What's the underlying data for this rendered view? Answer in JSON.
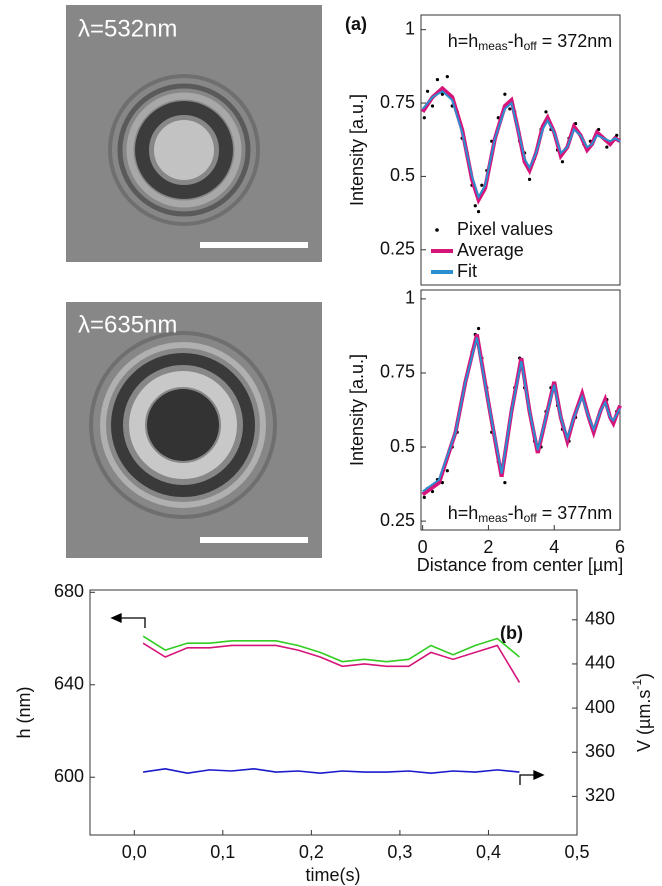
{
  "panels": [
    {
      "label": "λ=532nm"
    },
    {
      "label": "λ=635nm"
    }
  ],
  "chart_data": [
    {
      "type": "line",
      "panel_label": "(a)",
      "ylabel": "Intensity [a.u.]",
      "annotation": [
        "h=h",
        "meas",
        "-h",
        "off",
        " = 372nm"
      ],
      "xlim": [
        -0.05,
        6
      ],
      "ylim": [
        0.13,
        1.05
      ],
      "yticks": [
        0.25,
        0.5,
        0.75,
        1
      ],
      "legend": "lower-left",
      "series": [
        {
          "name": "Pixel values",
          "color": "#000000",
          "style": "scatter",
          "x": [
            0.05,
            0.15,
            0.3,
            0.45,
            0.6,
            0.75,
            0.9,
            1.05,
            1.2,
            1.35,
            1.5,
            1.6,
            1.7,
            1.8,
            1.95,
            2.1,
            2.3,
            2.5,
            2.65,
            2.8,
            2.95,
            3.1,
            3.25,
            3.4,
            3.6,
            3.75,
            3.9,
            4.1,
            4.25,
            4.45,
            4.65,
            4.9,
            5.1,
            5.35,
            5.6,
            5.9
          ],
          "values": [
            0.7,
            0.79,
            0.74,
            0.83,
            0.78,
            0.84,
            0.74,
            0.72,
            0.63,
            0.58,
            0.47,
            0.4,
            0.38,
            0.47,
            0.52,
            0.62,
            0.7,
            0.78,
            0.73,
            0.72,
            0.62,
            0.58,
            0.49,
            0.56,
            0.66,
            0.72,
            0.66,
            0.59,
            0.55,
            0.63,
            0.68,
            0.61,
            0.62,
            0.66,
            0.6,
            0.64
          ]
        },
        {
          "name": "Average",
          "color": "#d6157a",
          "style": "line",
          "x": [
            0,
            0.3,
            0.6,
            0.9,
            1.2,
            1.5,
            1.7,
            1.9,
            2.2,
            2.5,
            2.7,
            2.9,
            3.1,
            3.25,
            3.45,
            3.65,
            3.8,
            4.0,
            4.2,
            4.4,
            4.6,
            4.8,
            5.0,
            5.15,
            5.3,
            5.5,
            5.7,
            5.85,
            6
          ],
          "values": [
            0.72,
            0.77,
            0.8,
            0.77,
            0.66,
            0.49,
            0.42,
            0.46,
            0.63,
            0.74,
            0.76,
            0.66,
            0.55,
            0.52,
            0.58,
            0.67,
            0.7,
            0.65,
            0.57,
            0.6,
            0.67,
            0.64,
            0.59,
            0.61,
            0.65,
            0.63,
            0.61,
            0.63,
            0.62
          ]
        },
        {
          "name": "Fit",
          "color": "#2a8fd0",
          "style": "line",
          "x": [
            0,
            0.3,
            0.6,
            0.9,
            1.2,
            1.5,
            1.7,
            1.9,
            2.2,
            2.5,
            2.7,
            2.9,
            3.1,
            3.25,
            3.45,
            3.65,
            3.8,
            4.0,
            4.2,
            4.4,
            4.6,
            4.8,
            5.0,
            5.15,
            5.3,
            5.5,
            5.7,
            5.85,
            6
          ],
          "values": [
            0.73,
            0.77,
            0.79,
            0.76,
            0.65,
            0.5,
            0.43,
            0.47,
            0.63,
            0.73,
            0.75,
            0.66,
            0.56,
            0.53,
            0.58,
            0.66,
            0.69,
            0.65,
            0.58,
            0.6,
            0.66,
            0.64,
            0.6,
            0.61,
            0.64,
            0.63,
            0.62,
            0.63,
            0.62
          ]
        }
      ]
    },
    {
      "type": "line",
      "ylabel": "Intensity [a.u.]",
      "xlabel": "Distance from center [µm]",
      "annotation": [
        "h=h",
        "meas",
        "-h",
        "off",
        " = 377nm"
      ],
      "xlim": [
        -0.05,
        6
      ],
      "ylim": [
        0.22,
        1.03
      ],
      "xticks": [
        0,
        2,
        4,
        6
      ],
      "yticks": [
        0.25,
        0.5,
        0.75,
        1
      ],
      "series": [
        {
          "color": "#000000",
          "style": "scatter",
          "x": [
            0.05,
            0.15,
            0.3,
            0.45,
            0.6,
            0.75,
            0.9,
            1.05,
            1.2,
            1.35,
            1.5,
            1.6,
            1.7,
            1.8,
            1.95,
            2.1,
            2.3,
            2.5,
            2.65,
            2.8,
            2.95,
            3.1,
            3.25,
            3.4,
            3.6,
            3.75,
            3.9,
            4.1,
            4.25,
            4.45,
            4.65,
            4.9,
            5.1,
            5.35,
            5.6,
            5.9
          ],
          "values": [
            0.33,
            0.36,
            0.35,
            0.39,
            0.38,
            0.42,
            0.5,
            0.55,
            0.66,
            0.74,
            0.82,
            0.88,
            0.9,
            0.8,
            0.7,
            0.55,
            0.45,
            0.38,
            0.58,
            0.7,
            0.8,
            0.7,
            0.62,
            0.52,
            0.5,
            0.62,
            0.7,
            0.64,
            0.56,
            0.52,
            0.6,
            0.66,
            0.58,
            0.6,
            0.66,
            0.62
          ]
        },
        {
          "color": "#d6157a",
          "style": "line",
          "x": [
            0,
            0.5,
            1.0,
            1.3,
            1.65,
            2.0,
            2.4,
            2.7,
            3.0,
            3.25,
            3.5,
            3.75,
            4.0,
            4.2,
            4.4,
            4.6,
            4.85,
            5.05,
            5.2,
            5.4,
            5.55,
            5.7,
            5.8,
            6
          ],
          "values": [
            0.34,
            0.38,
            0.55,
            0.72,
            0.88,
            0.65,
            0.4,
            0.62,
            0.8,
            0.62,
            0.48,
            0.6,
            0.72,
            0.6,
            0.52,
            0.6,
            0.68,
            0.6,
            0.55,
            0.62,
            0.66,
            0.6,
            0.58,
            0.64
          ]
        },
        {
          "color": "#2a8fd0",
          "style": "line",
          "x": [
            0,
            0.5,
            1.0,
            1.3,
            1.65,
            2.0,
            2.4,
            2.7,
            3.0,
            3.25,
            3.5,
            3.75,
            4.0,
            4.2,
            4.4,
            4.6,
            4.85,
            5.05,
            5.2,
            5.4,
            5.55,
            5.7,
            5.8,
            6
          ],
          "values": [
            0.35,
            0.39,
            0.55,
            0.72,
            0.87,
            0.65,
            0.41,
            0.62,
            0.79,
            0.62,
            0.49,
            0.6,
            0.71,
            0.6,
            0.53,
            0.6,
            0.67,
            0.6,
            0.56,
            0.62,
            0.65,
            0.6,
            0.59,
            0.63
          ]
        }
      ]
    },
    {
      "type": "line",
      "panel_label": "(b)",
      "xlabel": "time(s)",
      "ylabel": "h (nm)",
      "y2label": [
        "V (µm.s",
        "-1",
        ")"
      ],
      "xlim": [
        -0.05,
        0.5
      ],
      "ylim": [
        575,
        681
      ],
      "y2lim": [
        285,
        507
      ],
      "xticks": [
        {
          "value": 0,
          "label": "0,0"
        },
        {
          "value": 0.1,
          "label": "0,1"
        },
        {
          "value": 0.2,
          "label": "0,2"
        },
        {
          "value": 0.3,
          "label": "0,3"
        },
        {
          "value": 0.4,
          "label": "0,4"
        },
        {
          "value": 0.5,
          "label": "0,5"
        }
      ],
      "yticks": [
        600,
        640,
        680
      ],
      "y2ticks": [
        320,
        360,
        400,
        440,
        480
      ],
      "series": [
        {
          "color": "#33cc22",
          "style": "line",
          "x": [
            0.01,
            0.035,
            0.06,
            0.085,
            0.11,
            0.135,
            0.16,
            0.185,
            0.21,
            0.235,
            0.26,
            0.285,
            0.31,
            0.335,
            0.36,
            0.385,
            0.41,
            0.435
          ],
          "values": [
            661,
            655,
            658,
            658,
            659,
            659,
            659,
            657,
            654,
            650,
            651,
            650,
            651,
            657,
            653,
            657,
            660,
            652
          ]
        },
        {
          "color": "#d6157a",
          "style": "line",
          "x": [
            0.01,
            0.035,
            0.06,
            0.085,
            0.11,
            0.135,
            0.16,
            0.185,
            0.21,
            0.235,
            0.26,
            0.285,
            0.31,
            0.335,
            0.36,
            0.385,
            0.41,
            0.435
          ],
          "values": [
            658,
            652,
            656,
            656,
            657,
            657,
            657,
            655,
            652,
            648,
            649,
            648,
            648,
            654,
            651,
            654,
            657,
            641
          ]
        },
        {
          "color": "#1a1acc",
          "style": "line",
          "axis": "y2",
          "x": [
            0.01,
            0.035,
            0.06,
            0.085,
            0.11,
            0.135,
            0.16,
            0.185,
            0.21,
            0.235,
            0.26,
            0.285,
            0.31,
            0.335,
            0.36,
            0.385,
            0.41,
            0.435
          ],
          "values": [
            342,
            345,
            341,
            344,
            343,
            345,
            342,
            343,
            341,
            343,
            342,
            342,
            343,
            341,
            343,
            342,
            344,
            342
          ]
        }
      ]
    }
  ]
}
